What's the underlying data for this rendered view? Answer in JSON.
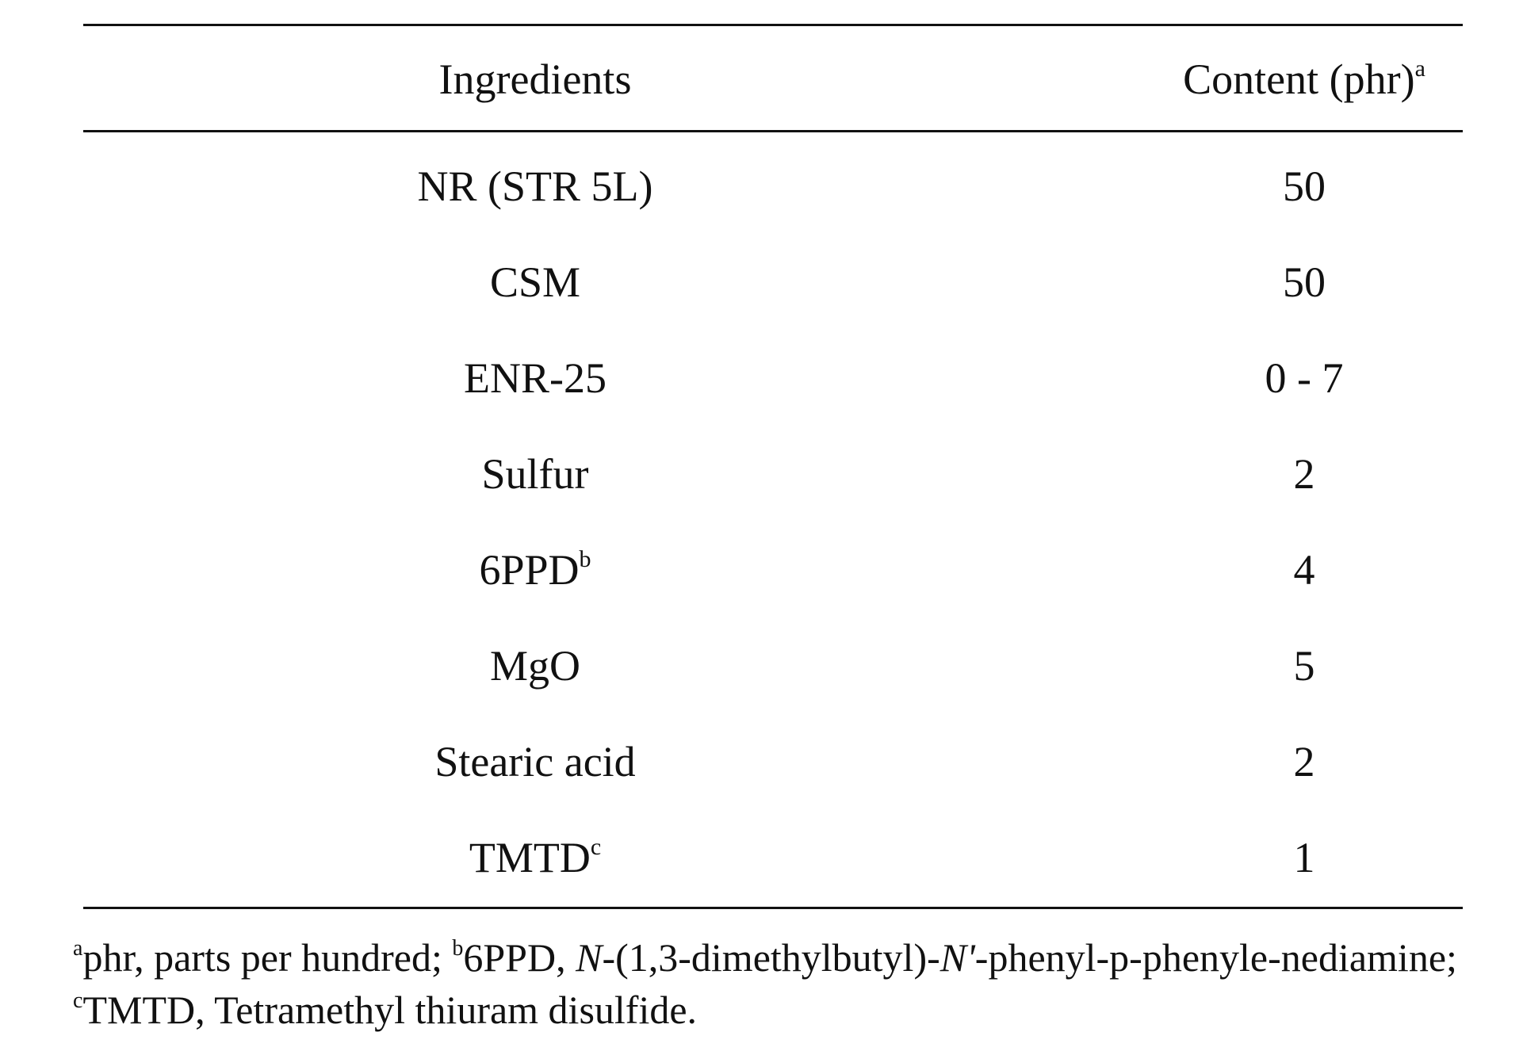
{
  "table": {
    "header": {
      "ingredients": "Ingredients",
      "content": "Content (phr)",
      "content_sup": "a"
    },
    "rows": [
      {
        "ingredient": "NR (STR 5L)",
        "sup": "",
        "content": "50"
      },
      {
        "ingredient": "CSM",
        "sup": "",
        "content": "50"
      },
      {
        "ingredient": "ENR-25",
        "sup": "",
        "content": "0 - 7"
      },
      {
        "ingredient": "Sulfur",
        "sup": "",
        "content": "2"
      },
      {
        "ingredient": "6PPD",
        "sup": "b",
        "content": "4"
      },
      {
        "ingredient": "MgO",
        "sup": "",
        "content": "5"
      },
      {
        "ingredient": "Stearic acid",
        "sup": "",
        "content": "2"
      },
      {
        "ingredient": "TMTD",
        "sup": "c",
        "content": "1"
      }
    ]
  },
  "footnote": {
    "a_mark": "a",
    "a_text": "phr, parts per hundred; ",
    "b_mark": "b",
    "b_text_1": "6PPD, ",
    "b_italic_1": "N",
    "b_text_2": "-(1,3-dimethylbutyl)-",
    "b_italic_2": "N'",
    "b_text_3": "-phenyl-p-phenyle-nediamine; ",
    "c_mark": "c",
    "c_text": "TMTD, Tetramethyl thiuram disulfide."
  }
}
